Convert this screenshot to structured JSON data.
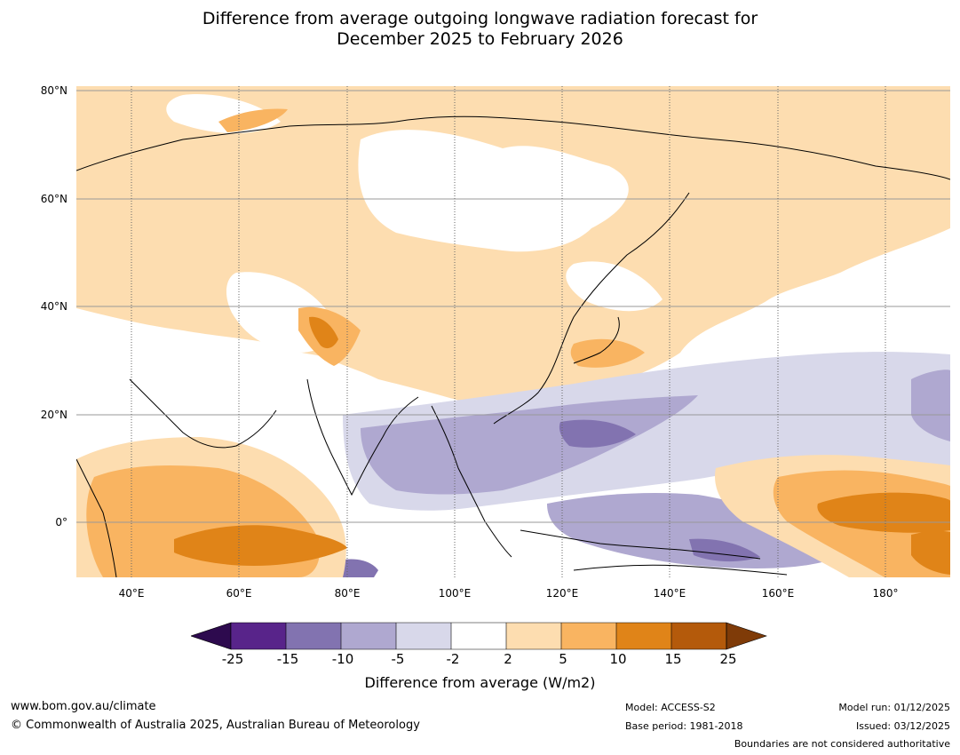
{
  "title": {
    "line1": "Difference from average outgoing longwave radiation forecast for",
    "line2": "December 2025 to February 2026"
  },
  "map": {
    "latitude_labels": [
      "80°N",
      "60°N",
      "40°N",
      "20°N",
      "0°"
    ],
    "longitude_labels": [
      "40°E",
      "60°E",
      "80°E",
      "100°E",
      "120°E",
      "140°E",
      "160°E",
      "180°"
    ]
  },
  "colorbar": {
    "ticks": [
      "-25",
      "-15",
      "-10",
      "-5",
      "-2",
      "2",
      "5",
      "10",
      "15",
      "25"
    ],
    "colors": {
      "below_min": "#2d0a4e",
      "m25_m15": "#58248a",
      "m15_m10": "#8273b0",
      "m10_m5": "#afa8d0",
      "m5_m2": "#d8d8ea",
      "m2_p2": "#ffffff",
      "p2_p5": "#fdddb0",
      "p5_p10": "#f9b461",
      "p10_p15": "#e08418",
      "p15_p25": "#b45a0b",
      "above_max": "#7f3b08"
    },
    "label": "Difference from average (W/m2)"
  },
  "footer": {
    "website": "www.bom.gov.au/climate",
    "copyright": "© Commonwealth of Australia 2025, Australian Bureau of Meteorology",
    "model": "Model: ACCESS-S2",
    "base_period": "Base period: 1981-2018",
    "model_run": "Model run: 01/12/2025",
    "issued": "Issued: 03/12/2025",
    "disclaimer": "Boundaries are not considered authoritative"
  }
}
